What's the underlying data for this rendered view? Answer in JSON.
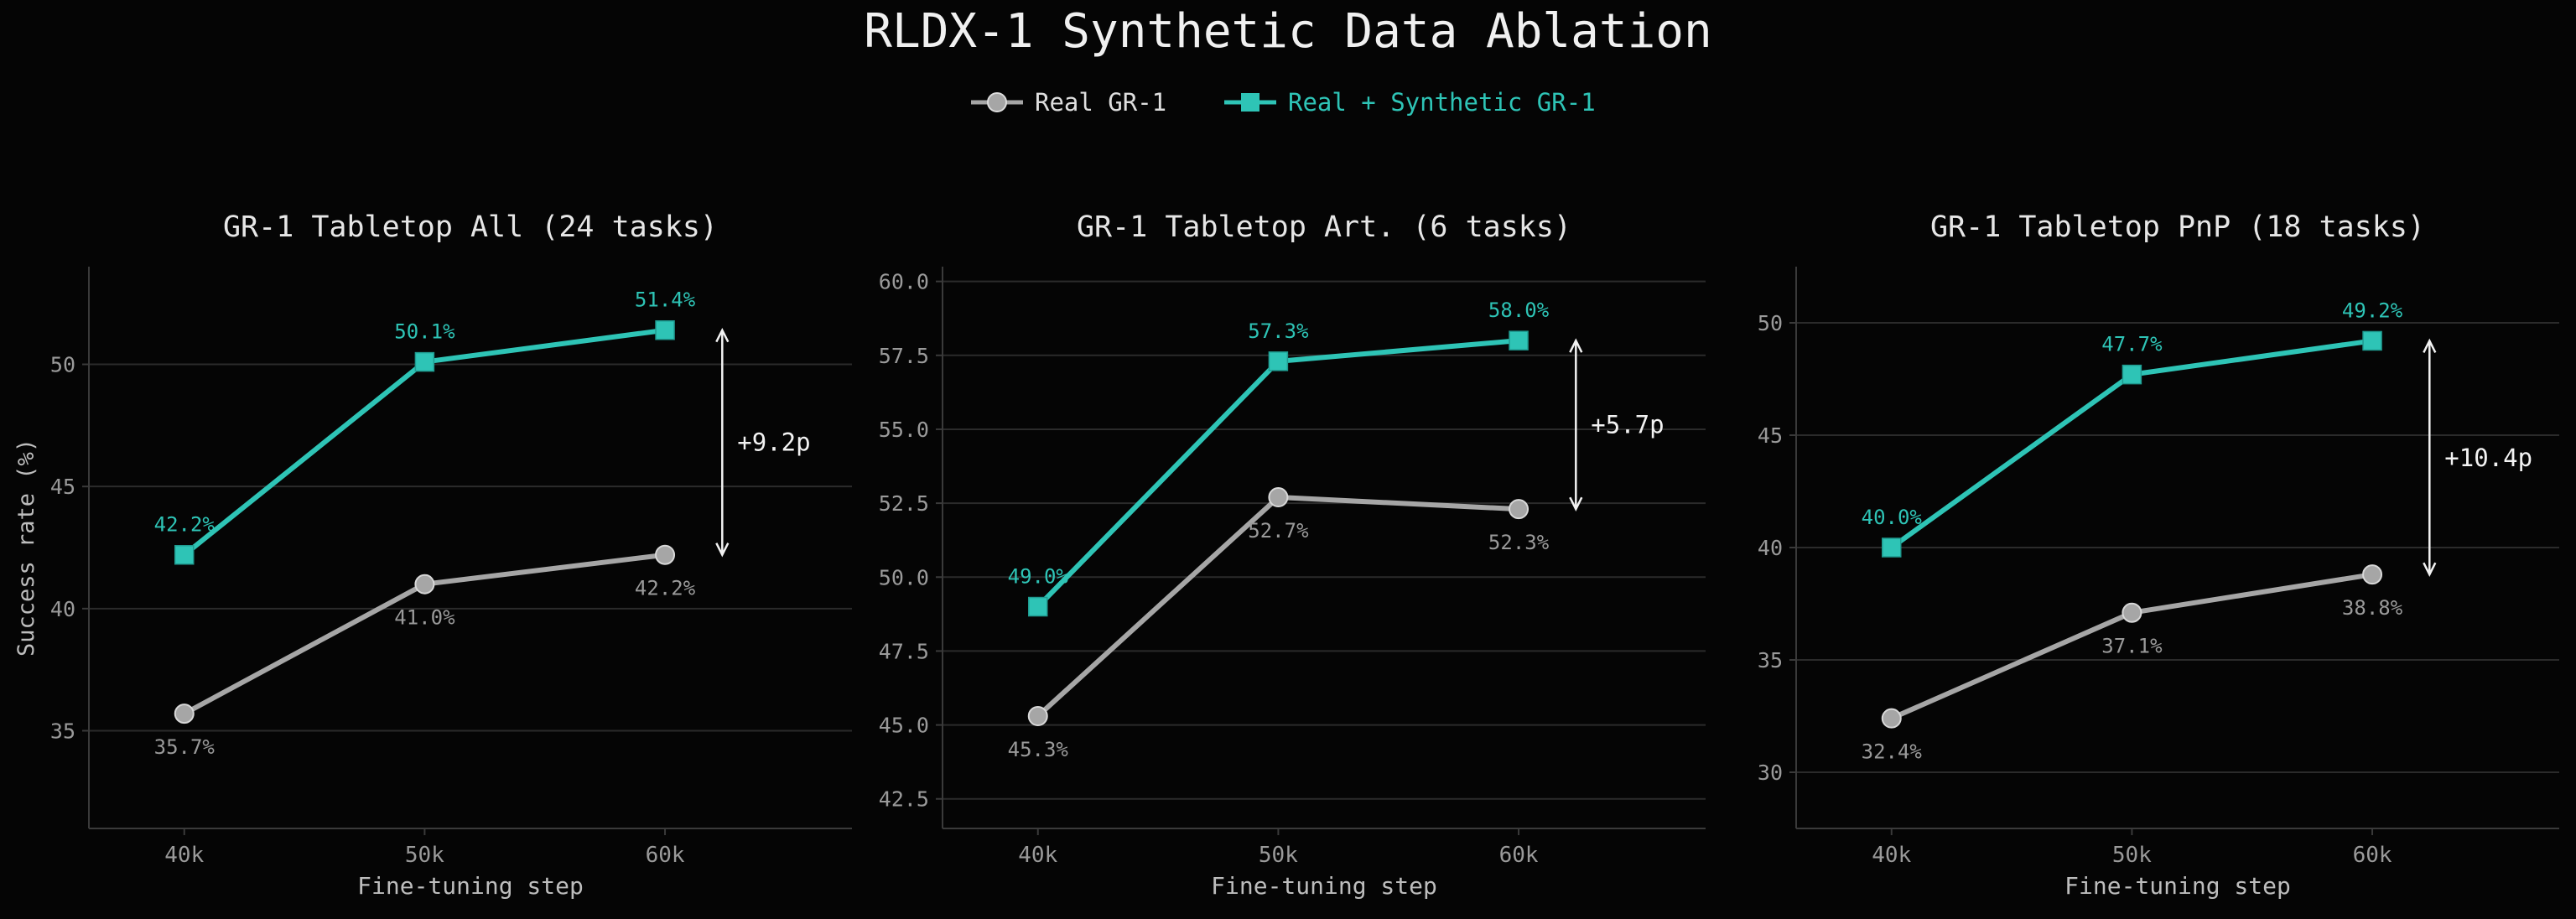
{
  "title": "RLDX-1 Synthetic Data Ablation",
  "legend": [
    {
      "label": "Real GR-1",
      "color": "#a6a6a6",
      "marker": "circle"
    },
    {
      "label": "Real + Synthetic GR-1",
      "color": "#2ec4b6",
      "marker": "square"
    }
  ],
  "colors": {
    "background": "#050505",
    "real": "#a6a6a6",
    "synthetic": "#2ec4b6",
    "text": "#e6e6e6",
    "axis_text": "#9a9a9a",
    "grid": "#2b2b2b",
    "spine": "#3a3a3a",
    "annotation": "#f2f2f2"
  },
  "chart_data": [
    {
      "type": "line",
      "title": "GR-1 Tabletop All  (24 tasks)",
      "xlabel": "Fine-tuning step",
      "ylabel": "Success rate (%)",
      "categories": [
        "40k",
        "50k",
        "60k"
      ],
      "ylim": [
        31.0,
        54.0
      ],
      "yticks": [
        35,
        40,
        45,
        50
      ],
      "ytick_labels": [
        "35",
        "40",
        "45",
        "50"
      ],
      "grid": true,
      "series": [
        {
          "name": "Real GR-1",
          "values": [
            35.7,
            41.0,
            42.2
          ],
          "labels": [
            "35.7%",
            "41.0%",
            "42.2%"
          ]
        },
        {
          "name": "Real + Synthetic GR-1",
          "values": [
            42.2,
            50.1,
            51.4
          ],
          "labels": [
            "42.2%",
            "50.1%",
            "51.4%"
          ]
        }
      ],
      "gap_annotation": {
        "text": "+9.2p",
        "from": 42.2,
        "to": 51.4
      }
    },
    {
      "type": "line",
      "title": "GR-1 Tabletop Art.  (6 tasks)",
      "xlabel": "Fine-tuning step",
      "ylabel": "",
      "categories": [
        "40k",
        "50k",
        "60k"
      ],
      "ylim": [
        41.5,
        60.5
      ],
      "yticks": [
        42.5,
        45.0,
        47.5,
        50.0,
        52.5,
        55.0,
        57.5,
        60.0
      ],
      "ytick_labels": [
        "42.5",
        "45.0",
        "47.5",
        "50.0",
        "52.5",
        "55.0",
        "57.5",
        "60.0"
      ],
      "grid": true,
      "series": [
        {
          "name": "Real GR-1",
          "values": [
            45.3,
            52.7,
            52.3
          ],
          "labels": [
            "45.3%",
            "52.7%",
            "52.3%"
          ]
        },
        {
          "name": "Real + Synthetic GR-1",
          "values": [
            49.0,
            57.3,
            58.0
          ],
          "labels": [
            "49.0%",
            "57.3%",
            "58.0%"
          ]
        }
      ],
      "gap_annotation": {
        "text": "+5.7p",
        "from": 52.3,
        "to": 58.0
      }
    },
    {
      "type": "line",
      "title": "GR-1 Tabletop PnP  (18 tasks)",
      "xlabel": "Fine-tuning step",
      "ylabel": "",
      "categories": [
        "40k",
        "50k",
        "60k"
      ],
      "ylim": [
        27.5,
        52.5
      ],
      "yticks": [
        30,
        35,
        40,
        45,
        50
      ],
      "ytick_labels": [
        "30",
        "35",
        "40",
        "45",
        "50"
      ],
      "grid": true,
      "series": [
        {
          "name": "Real GR-1",
          "values": [
            32.4,
            37.1,
            38.8
          ],
          "labels": [
            "32.4%",
            "37.1%",
            "38.8%"
          ]
        },
        {
          "name": "Real + Synthetic GR-1",
          "values": [
            40.0,
            47.7,
            49.2
          ],
          "labels": [
            "40.0%",
            "47.7%",
            "49.2%"
          ]
        }
      ],
      "gap_annotation": {
        "text": "+10.4p",
        "from": 38.8,
        "to": 49.2
      }
    }
  ]
}
